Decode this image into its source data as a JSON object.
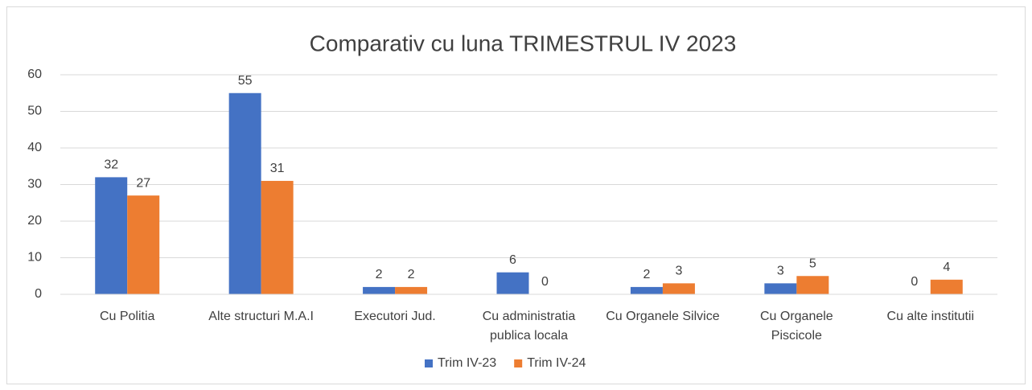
{
  "chart_data": {
    "type": "bar",
    "title": "Comparativ cu luna TRIMESTRUL IV 2023",
    "categories": [
      "Cu Politia",
      "Alte structuri M.A.I",
      "Executori Jud.",
      "Cu administratia publica locala",
      "Cu Organele Silvice",
      "Cu Organele Piscicole",
      "Cu alte institutii"
    ],
    "series": [
      {
        "name": "Trim IV-23",
        "color": "#4472c4",
        "values": [
          32,
          55,
          2,
          6,
          2,
          3,
          0
        ]
      },
      {
        "name": "Trim IV-24",
        "color": "#ed7d31",
        "values": [
          27,
          31,
          2,
          0,
          3,
          5,
          4
        ]
      }
    ],
    "ylim": [
      0,
      60
    ],
    "yticks": [
      0,
      10,
      20,
      30,
      40,
      50,
      60
    ],
    "grid": true,
    "legend": "bottom"
  }
}
